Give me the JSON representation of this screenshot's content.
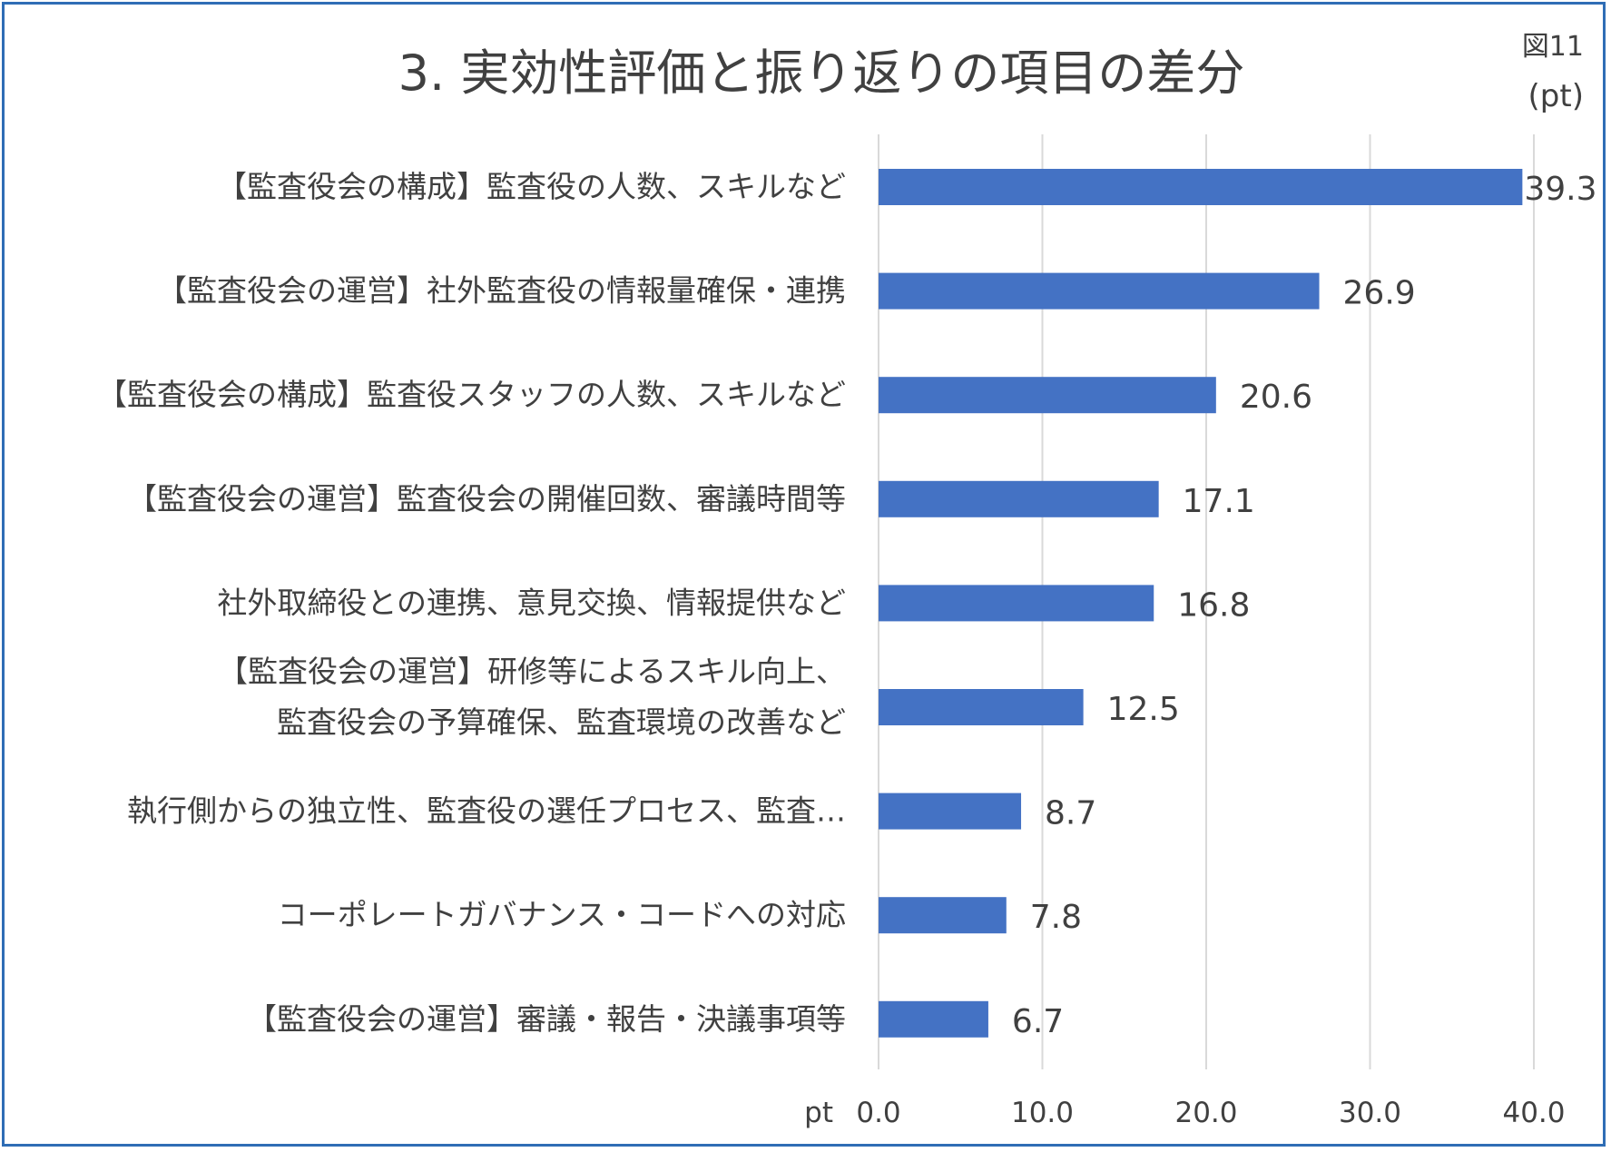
{
  "figure_label": "図11",
  "unit_label": "(pt)",
  "chart_data": {
    "type": "bar",
    "orientation": "horizontal",
    "title": "3. 実効性評価と振り返りの項目の差分",
    "categories": [
      [
        "【監査役会の構成】監査役の人数、スキルなど"
      ],
      [
        "【監査役会の運営】社外監査役の情報量確保・連携"
      ],
      [
        "【監査役会の構成】監査役スタッフの人数、スキルなど"
      ],
      [
        "【監査役会の運営】監査役会の開催回数、審議時間等"
      ],
      [
        "社外取締役との連携、意見交換、情報提供など"
      ],
      [
        "【監査役会の運営】研修等によるスキル向上、",
        "監査役会の予算確保、監査環境の改善など"
      ],
      [
        "執行側からの独立性、監査役の選任プロセス、監査…"
      ],
      [
        "コーポレートガバナンス・コードへの対応"
      ],
      [
        "【監査役会の運営】審議・報告・決議事項等"
      ]
    ],
    "values": [
      39.3,
      26.9,
      20.6,
      17.1,
      16.8,
      12.5,
      8.7,
      7.8,
      6.7
    ],
    "value_labels": [
      "39.3",
      "26.9",
      "20.6",
      "17.1",
      "16.8",
      "12.5",
      "8.7",
      "7.8",
      "6.7"
    ],
    "xlabel": "pt",
    "xlim": [
      0,
      40
    ],
    "xticks": [
      0,
      10,
      20,
      30,
      40
    ],
    "xtick_labels": [
      "0.0",
      "10.0",
      "20.0",
      "30.0",
      "40.0"
    ],
    "grid": "vertical",
    "bar_color": "#4472c4",
    "grid_color": "#d9d9d9"
  }
}
